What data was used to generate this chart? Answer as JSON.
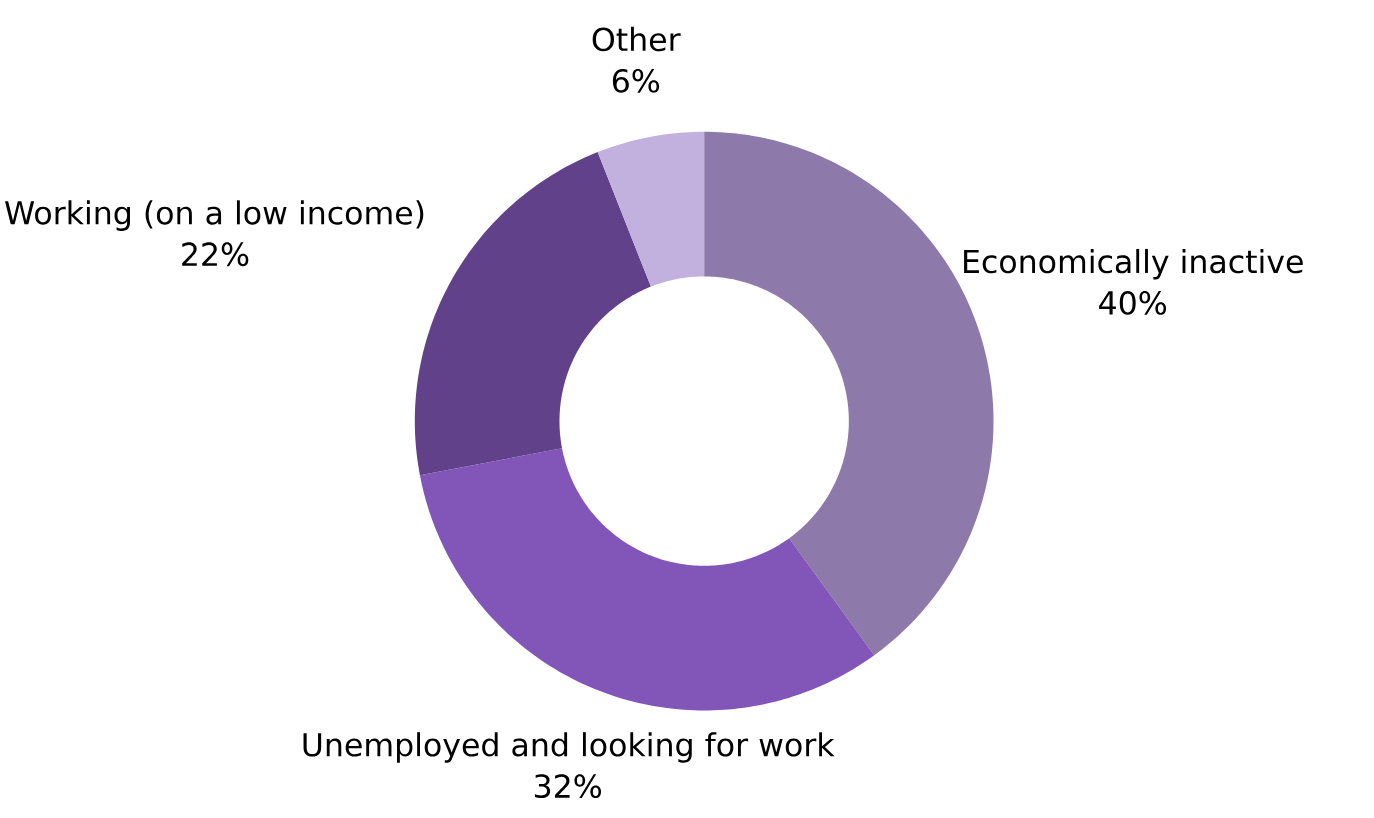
{
  "chart_data": {
    "type": "donut",
    "categories": [
      "Economically inactive",
      "Unemployed and looking for work",
      "Working (on a low income)",
      "Other"
    ],
    "values": [
      40,
      32,
      22,
      6
    ],
    "value_labels": [
      "40%",
      "32%",
      "22%",
      "6%"
    ],
    "colors": [
      "#8e79ab",
      "#8256b8",
      "#61418a",
      "#c2b0df"
    ]
  }
}
